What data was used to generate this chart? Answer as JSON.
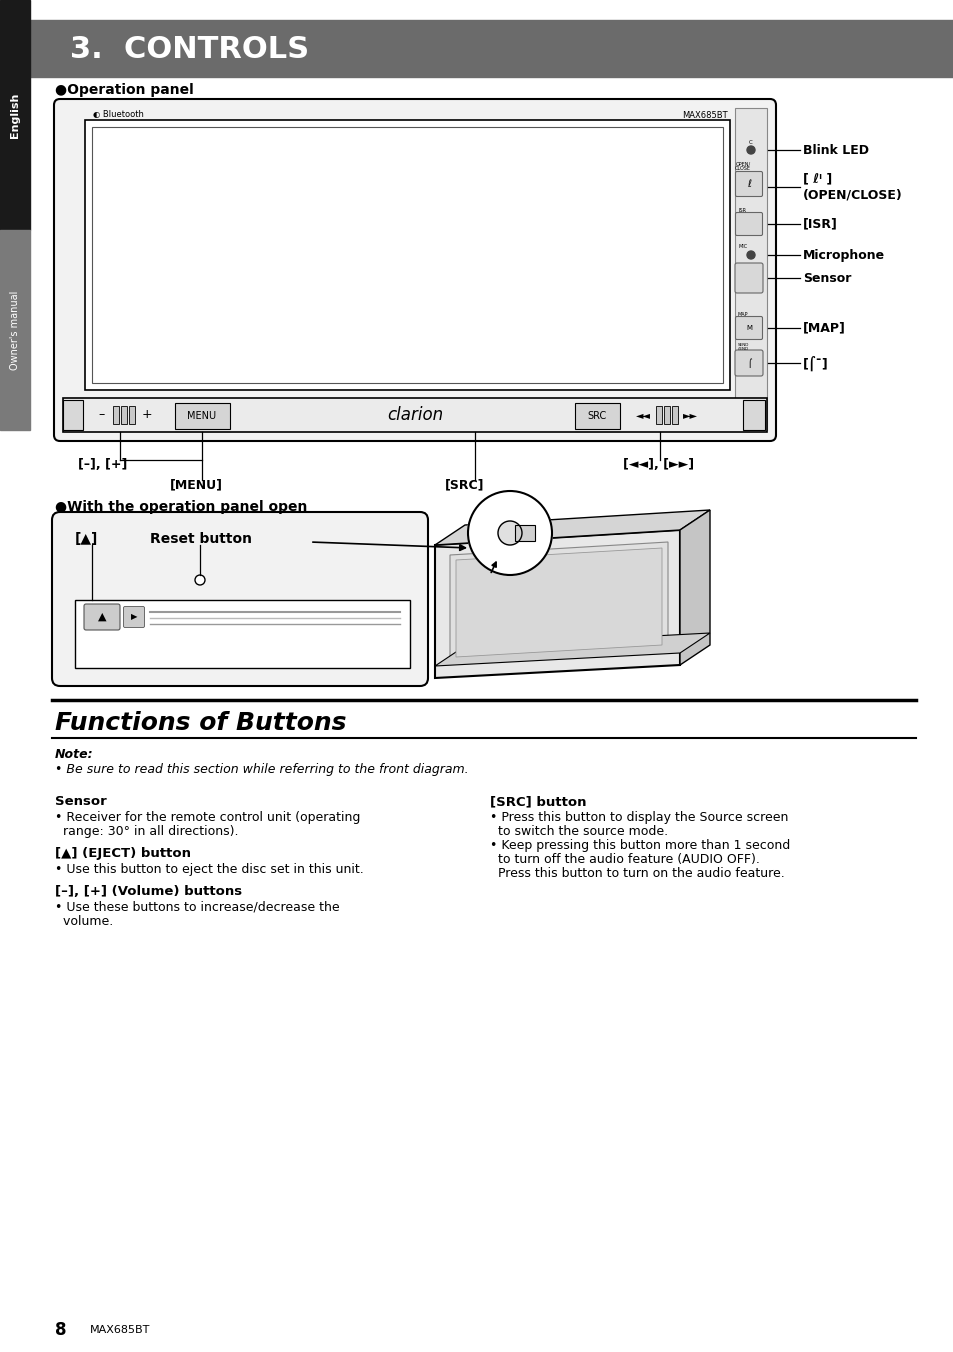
{
  "title": "3.  CONTROLS",
  "title_bg": "#6b6b6b",
  "title_color": "#ffffff",
  "title_fontsize": 22,
  "page_bg": "#ffffff",
  "sidebar_bg": "#1a1a1a",
  "sidebar_text": "English",
  "sidebar2_bg": "#7a7a7a",
  "sidebar2_text": "Owner's manual",
  "operation_panel_label": "●Operation panel",
  "with_panel_open_label": "●With the operation panel open",
  "functions_title": "Functions of Buttons",
  "note_bold": "Note:",
  "note_italic": "• Be sure to read this section while referring to the front diagram.",
  "section_left": [
    {
      "heading": "Sensor",
      "body": "• Receiver for the remote control unit (operating\n  range: 30° in all directions)."
    },
    {
      "heading": "[▲] (EJECT) button",
      "body": "• Use this button to eject the disc set in this unit."
    },
    {
      "heading": "[–], [+] (Volume) buttons",
      "body": "• Use these buttons to increase/decrease the\n  volume."
    }
  ],
  "section_right": [
    {
      "heading": "[SRC] button",
      "body": "• Press this button to display the Source screen\n  to switch the source mode.\n• Keep pressing this button more than 1 second\n  to turn off the audio feature (AUDIO OFF).\n  Press this button to turn on the audio feature."
    }
  ],
  "footer_num": "8",
  "footer_model": "MAX685BT"
}
